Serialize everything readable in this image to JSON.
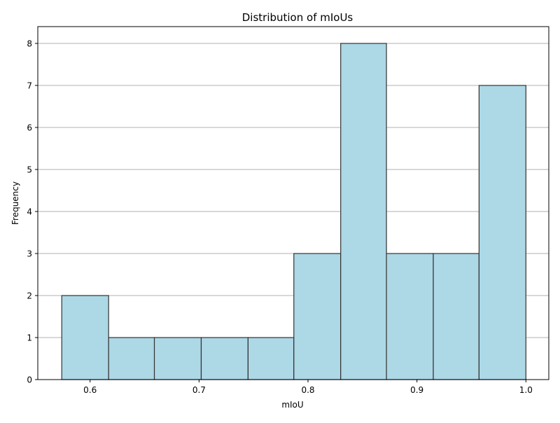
{
  "chart_data": {
    "type": "bar",
    "title": "Distribution of mIoUs",
    "xlabel": "mIoU",
    "ylabel": "Frequency",
    "xlim": [
      0.552,
      1.021
    ],
    "ylim": [
      0,
      8.4
    ],
    "x_ticks": [
      0.6,
      0.7,
      0.8,
      0.9,
      1.0
    ],
    "x_tick_labels": [
      "0.6",
      "0.7",
      "0.8",
      "0.9",
      "1.0"
    ],
    "y_ticks": [
      0,
      1,
      2,
      3,
      4,
      5,
      6,
      7,
      8
    ],
    "y_tick_labels": [
      "0",
      "1",
      "2",
      "3",
      "4",
      "5",
      "6",
      "7",
      "8"
    ],
    "grid": "y-axis only",
    "bins": [
      {
        "x_start": 0.574,
        "x_end": 0.617,
        "count": 2
      },
      {
        "x_start": 0.617,
        "x_end": 0.659,
        "count": 1
      },
      {
        "x_start": 0.659,
        "x_end": 0.702,
        "count": 1
      },
      {
        "x_start": 0.702,
        "x_end": 0.745,
        "count": 1
      },
      {
        "x_start": 0.745,
        "x_end": 0.787,
        "count": 1
      },
      {
        "x_start": 0.787,
        "x_end": 0.83,
        "count": 3
      },
      {
        "x_start": 0.83,
        "x_end": 0.872,
        "count": 8
      },
      {
        "x_start": 0.872,
        "x_end": 0.915,
        "count": 3
      },
      {
        "x_start": 0.915,
        "x_end": 0.957,
        "count": 3
      },
      {
        "x_start": 0.957,
        "x_end": 1.0,
        "count": 7
      }
    ],
    "colors": {
      "bar_fill": "#add8e6",
      "bar_edge": "#333333",
      "grid": "#b0b0b0",
      "axis": "#000000"
    }
  }
}
